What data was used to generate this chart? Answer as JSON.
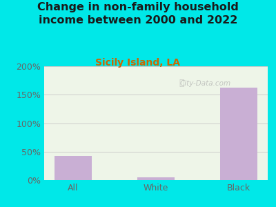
{
  "title": "Change in non-family household\nincome between 2000 and 2022",
  "subtitle": "Sicily Island, LA",
  "categories": [
    "All",
    "White",
    "Black"
  ],
  "values": [
    43,
    5,
    163
  ],
  "bar_color": "#c9afd4",
  "title_color": "#1a1a1a",
  "subtitle_color": "#cc6600",
  "bg_outer": "#00e8e8",
  "bg_plot": "#eef5e8",
  "ylim": [
    0,
    200
  ],
  "yticks": [
    0,
    50,
    100,
    150,
    200
  ],
  "ytick_labels": [
    "0%",
    "50%",
    "100%",
    "150%",
    "200%"
  ],
  "tick_color": "#666666",
  "grid_color": "#cccccc",
  "watermark": "City-Data.com",
  "title_fontsize": 11.5,
  "subtitle_fontsize": 10,
  "tick_fontsize": 9,
  "bar_width": 0.45
}
